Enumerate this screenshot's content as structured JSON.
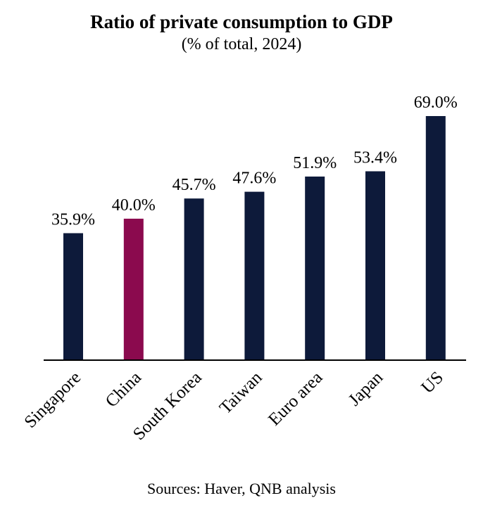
{
  "chart_data": {
    "type": "bar",
    "title": "Ratio of private consumption to GDP",
    "subtitle": "(% of total, 2024)",
    "source": "Sources: Haver, QNB analysis",
    "xlabel": "",
    "ylabel": "",
    "ylim": [
      0,
      70
    ],
    "grid": false,
    "categories": [
      "Singapore",
      "China",
      "South Korea",
      "Taiwan",
      "Euro area",
      "Japan",
      "US"
    ],
    "values": [
      35.9,
      40.0,
      45.7,
      47.6,
      51.9,
      53.4,
      69.0
    ],
    "value_labels": [
      "35.9%",
      "40.0%",
      "45.7%",
      "47.6%",
      "51.9%",
      "53.4%",
      "69.0%"
    ],
    "highlight_category": "China",
    "colors": {
      "default_bar": "#0d1a3a",
      "highlight_bar": "#8b0a4e",
      "axis": "#000000"
    }
  }
}
